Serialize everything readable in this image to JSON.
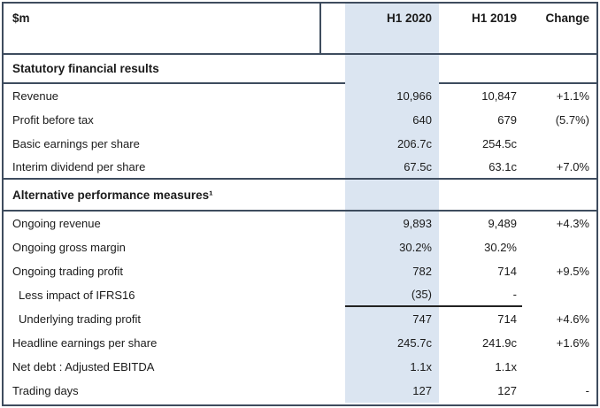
{
  "colors": {
    "highlight_column": "#dbe5f1",
    "rule": "#3e4c5e",
    "text": "#1b1b1b"
  },
  "table": {
    "unit_label": "$m",
    "col_headers": {
      "h1_2020": "H1 2020",
      "h1_2019": "H1 2019",
      "change": "Change"
    },
    "rows": [
      {
        "type": "section",
        "label": "Statutory financial results",
        "h1_2020": "",
        "h1_2019": "",
        "change": ""
      },
      {
        "type": "data",
        "label": "Revenue",
        "h1_2020": "10,966",
        "h1_2019": "10,847",
        "change": "+1.1%"
      },
      {
        "type": "data",
        "label": "Profit before tax",
        "h1_2020": "640",
        "h1_2019": "679",
        "change": "(5.7%)"
      },
      {
        "type": "data",
        "label": "Basic earnings per share",
        "h1_2020": "206.7c",
        "h1_2019": "254.5c",
        "change": ""
      },
      {
        "type": "data",
        "label": "Interim dividend per share",
        "h1_2020": "67.5c",
        "h1_2019": "63.1c",
        "change": "+7.0%"
      },
      {
        "type": "section",
        "label": "Alternative performance measures¹",
        "h1_2020": "",
        "h1_2019": "",
        "change": ""
      },
      {
        "type": "data",
        "label": "Ongoing revenue",
        "h1_2020": "9,893",
        "h1_2019": "9,489",
        "change": "+4.3%"
      },
      {
        "type": "data",
        "label": "Ongoing gross margin",
        "h1_2020": "30.2%",
        "h1_2019": "30.2%",
        "change": ""
      },
      {
        "type": "data",
        "label": "Ongoing trading profit",
        "h1_2020": "782",
        "h1_2019": "714",
        "change": "+9.5%"
      },
      {
        "type": "data",
        "label": "Less impact of IFRS16",
        "h1_2020": "(35)",
        "h1_2019": "-",
        "change": ""
      },
      {
        "type": "data",
        "label": "Underlying trading profit",
        "h1_2020": "747",
        "h1_2019": "714",
        "change": "+4.6%"
      },
      {
        "type": "data",
        "label": "Headline earnings per share",
        "h1_2020": "245.7c",
        "h1_2019": "241.9c",
        "change": "+1.6%"
      },
      {
        "type": "data",
        "label": "Net debt : Adjusted EBITDA",
        "h1_2020": "1.1x",
        "h1_2019": "1.1x",
        "change": ""
      },
      {
        "type": "data",
        "label": "Trading days",
        "h1_2020": "127",
        "h1_2019": "127",
        "change": "-"
      }
    ]
  }
}
